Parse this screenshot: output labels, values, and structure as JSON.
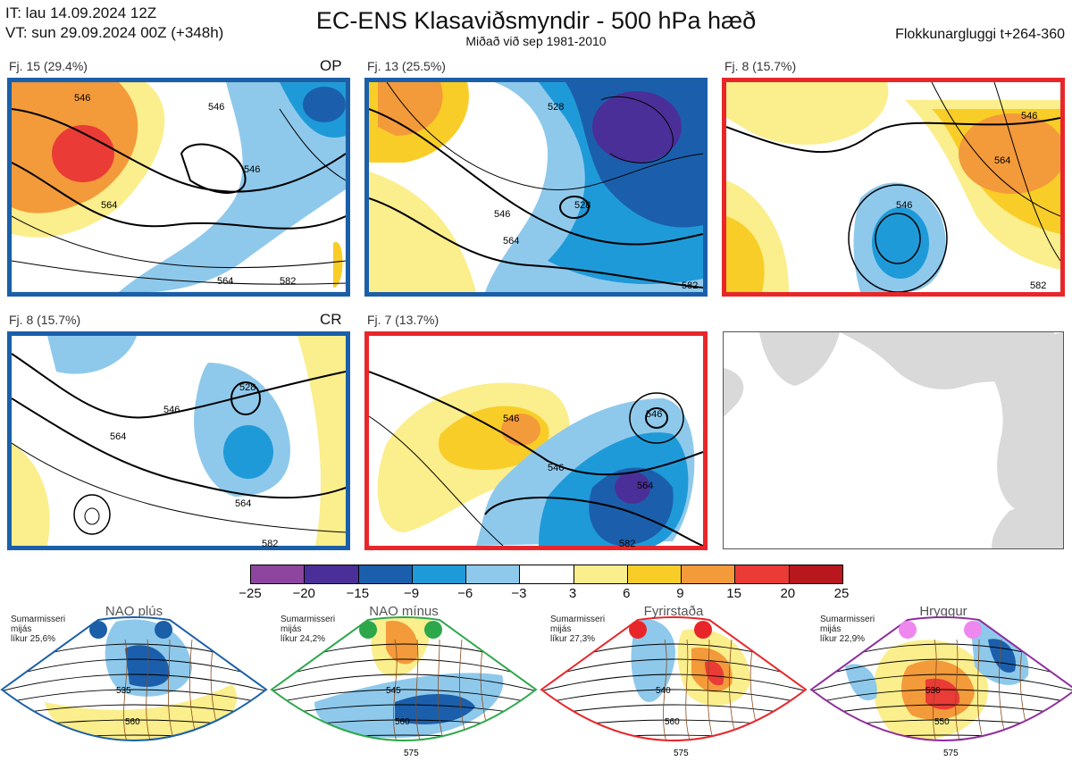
{
  "header": {
    "it_line": "IT: lau 14.09.2024 12Z",
    "vt_line": "VT: sun 29.09.2024 00Z  (+348h)",
    "title": "EC-ENS Klasaviðsmyndir - 500 hPa hæð",
    "subtitle": "Miðað við sep 1981-2010",
    "window": "Flokkunargluggi t+264-360"
  },
  "panels": [
    {
      "label": "Fj. 15 (29.4%)",
      "tag": "OP",
      "border": "#1a5fa8",
      "contours": [
        "546",
        "546",
        "564",
        "546",
        "564",
        "582"
      ]
    },
    {
      "label": "Fj. 13 (25.5%)",
      "tag": "",
      "border": "#1a5fa8",
      "contours": [
        "528",
        "528",
        "546",
        "564",
        "582"
      ]
    },
    {
      "label": "Fj. 8 (15.7%)",
      "tag": "",
      "border": "#e8262a",
      "contours": [
        "546",
        "564",
        "546",
        "582"
      ]
    },
    {
      "label": "Fj. 8 (15.7%)",
      "tag": "CR",
      "border": "#1a5fa8",
      "contours": [
        "546",
        "528",
        "564",
        "564",
        "582"
      ]
    },
    {
      "label": "Fj. 7 (13.7%)",
      "tag": "",
      "border": "#e8262a",
      "contours": [
        "546",
        "546",
        "564",
        "546",
        "582"
      ]
    }
  ],
  "colorbar": {
    "ticks": [
      "−25",
      "−20",
      "−15",
      "−9",
      "−6",
      "−3",
      "3",
      "6",
      "9",
      "15",
      "20",
      "25"
    ],
    "colors": [
      "#8e45a0",
      "#4b2f98",
      "#1b5fac",
      "#1f9ad9",
      "#8ec9ec",
      "#ffffff",
      "#fbee8c",
      "#f9cd28",
      "#f39a3a",
      "#ea3b36",
      "#b7171d"
    ]
  },
  "regimes": [
    {
      "name": "NAO plús",
      "note1": "Sumarmisseri",
      "note2": "mijás",
      "note3": "líkur 25,6%",
      "color": "#1a5fa8",
      "dot": "#1a5fa8",
      "contours": [
        "535",
        "560"
      ]
    },
    {
      "name": "NAO mínus",
      "note1": "Sumarmisseri",
      "note2": "mijás",
      "note3": "líkur 24,2%",
      "color": "#2ca84a",
      "dot": "#2ca84a",
      "contours": [
        "545",
        "560",
        "575"
      ]
    },
    {
      "name": "Fyrirstaða",
      "note1": "Sumarmisseri",
      "note2": "mijás",
      "note3": "líkur 27,3%",
      "color": "#e8262a",
      "dot": "#e8262a",
      "contours": [
        "540",
        "560",
        "575"
      ]
    },
    {
      "name": "Hryggur",
      "note1": "Sumarmisseri",
      "note2": "mijás",
      "note3": "líkur 22,9%",
      "color": "#8e2d9c",
      "dot": "#ee88ee",
      "contours": [
        "530",
        "550",
        "575"
      ]
    }
  ]
}
